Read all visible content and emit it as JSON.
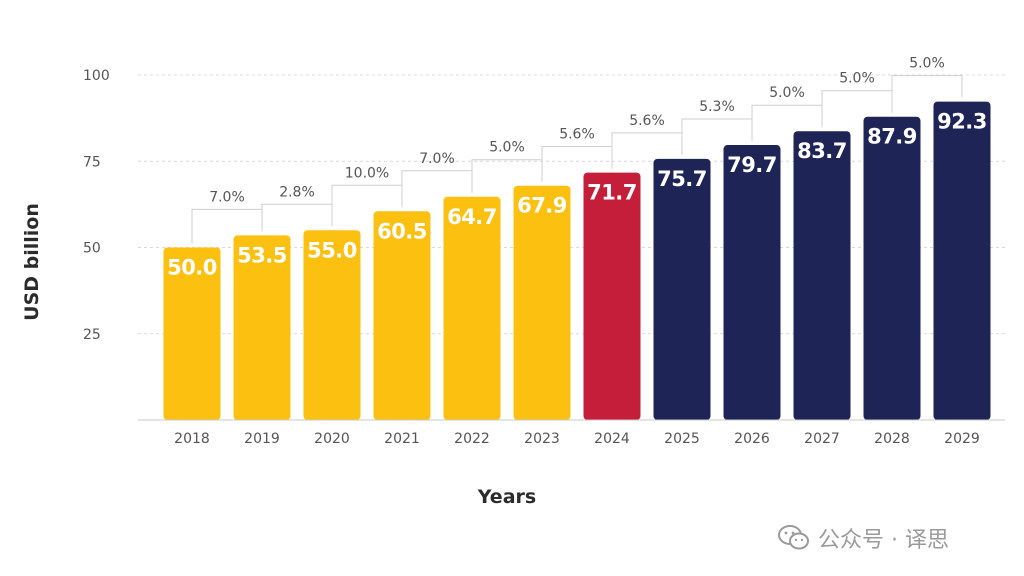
{
  "chart_data": {
    "type": "bar",
    "categories": [
      "2018",
      "2019",
      "2020",
      "2021",
      "2022",
      "2023",
      "2024",
      "2025",
      "2026",
      "2027",
      "2028",
      "2029"
    ],
    "values": [
      50.0,
      53.5,
      55.0,
      60.5,
      64.7,
      67.9,
      71.7,
      75.7,
      79.7,
      83.7,
      87.9,
      92.3
    ],
    "value_labels": [
      "50.0",
      "53.5",
      "55.0",
      "60.5",
      "64.7",
      "67.9",
      "71.7",
      "75.7",
      "79.7",
      "83.7",
      "87.9",
      "92.3"
    ],
    "growth_labels": [
      "7.0%",
      "2.8%",
      "10.0%",
      "7.0%",
      "5.0%",
      "5.6%",
      "5.6%",
      "5.3%",
      "5.0%",
      "5.0%",
      "5.0%"
    ],
    "bar_colors": [
      "#FCC010",
      "#FCC010",
      "#FCC010",
      "#FCC010",
      "#FCC010",
      "#FCC010",
      "#C41E3A",
      "#1E2456",
      "#1E2456",
      "#1E2456",
      "#1E2456",
      "#1E2456"
    ],
    "xlabel": "Years",
    "ylabel": "USD billion",
    "yticks": [
      25,
      50,
      75,
      100
    ],
    "ylim": [
      0,
      100
    ],
    "grid": true
  },
  "watermark": {
    "icon": "wechat-icon",
    "text": "公众号 · 译思"
  }
}
